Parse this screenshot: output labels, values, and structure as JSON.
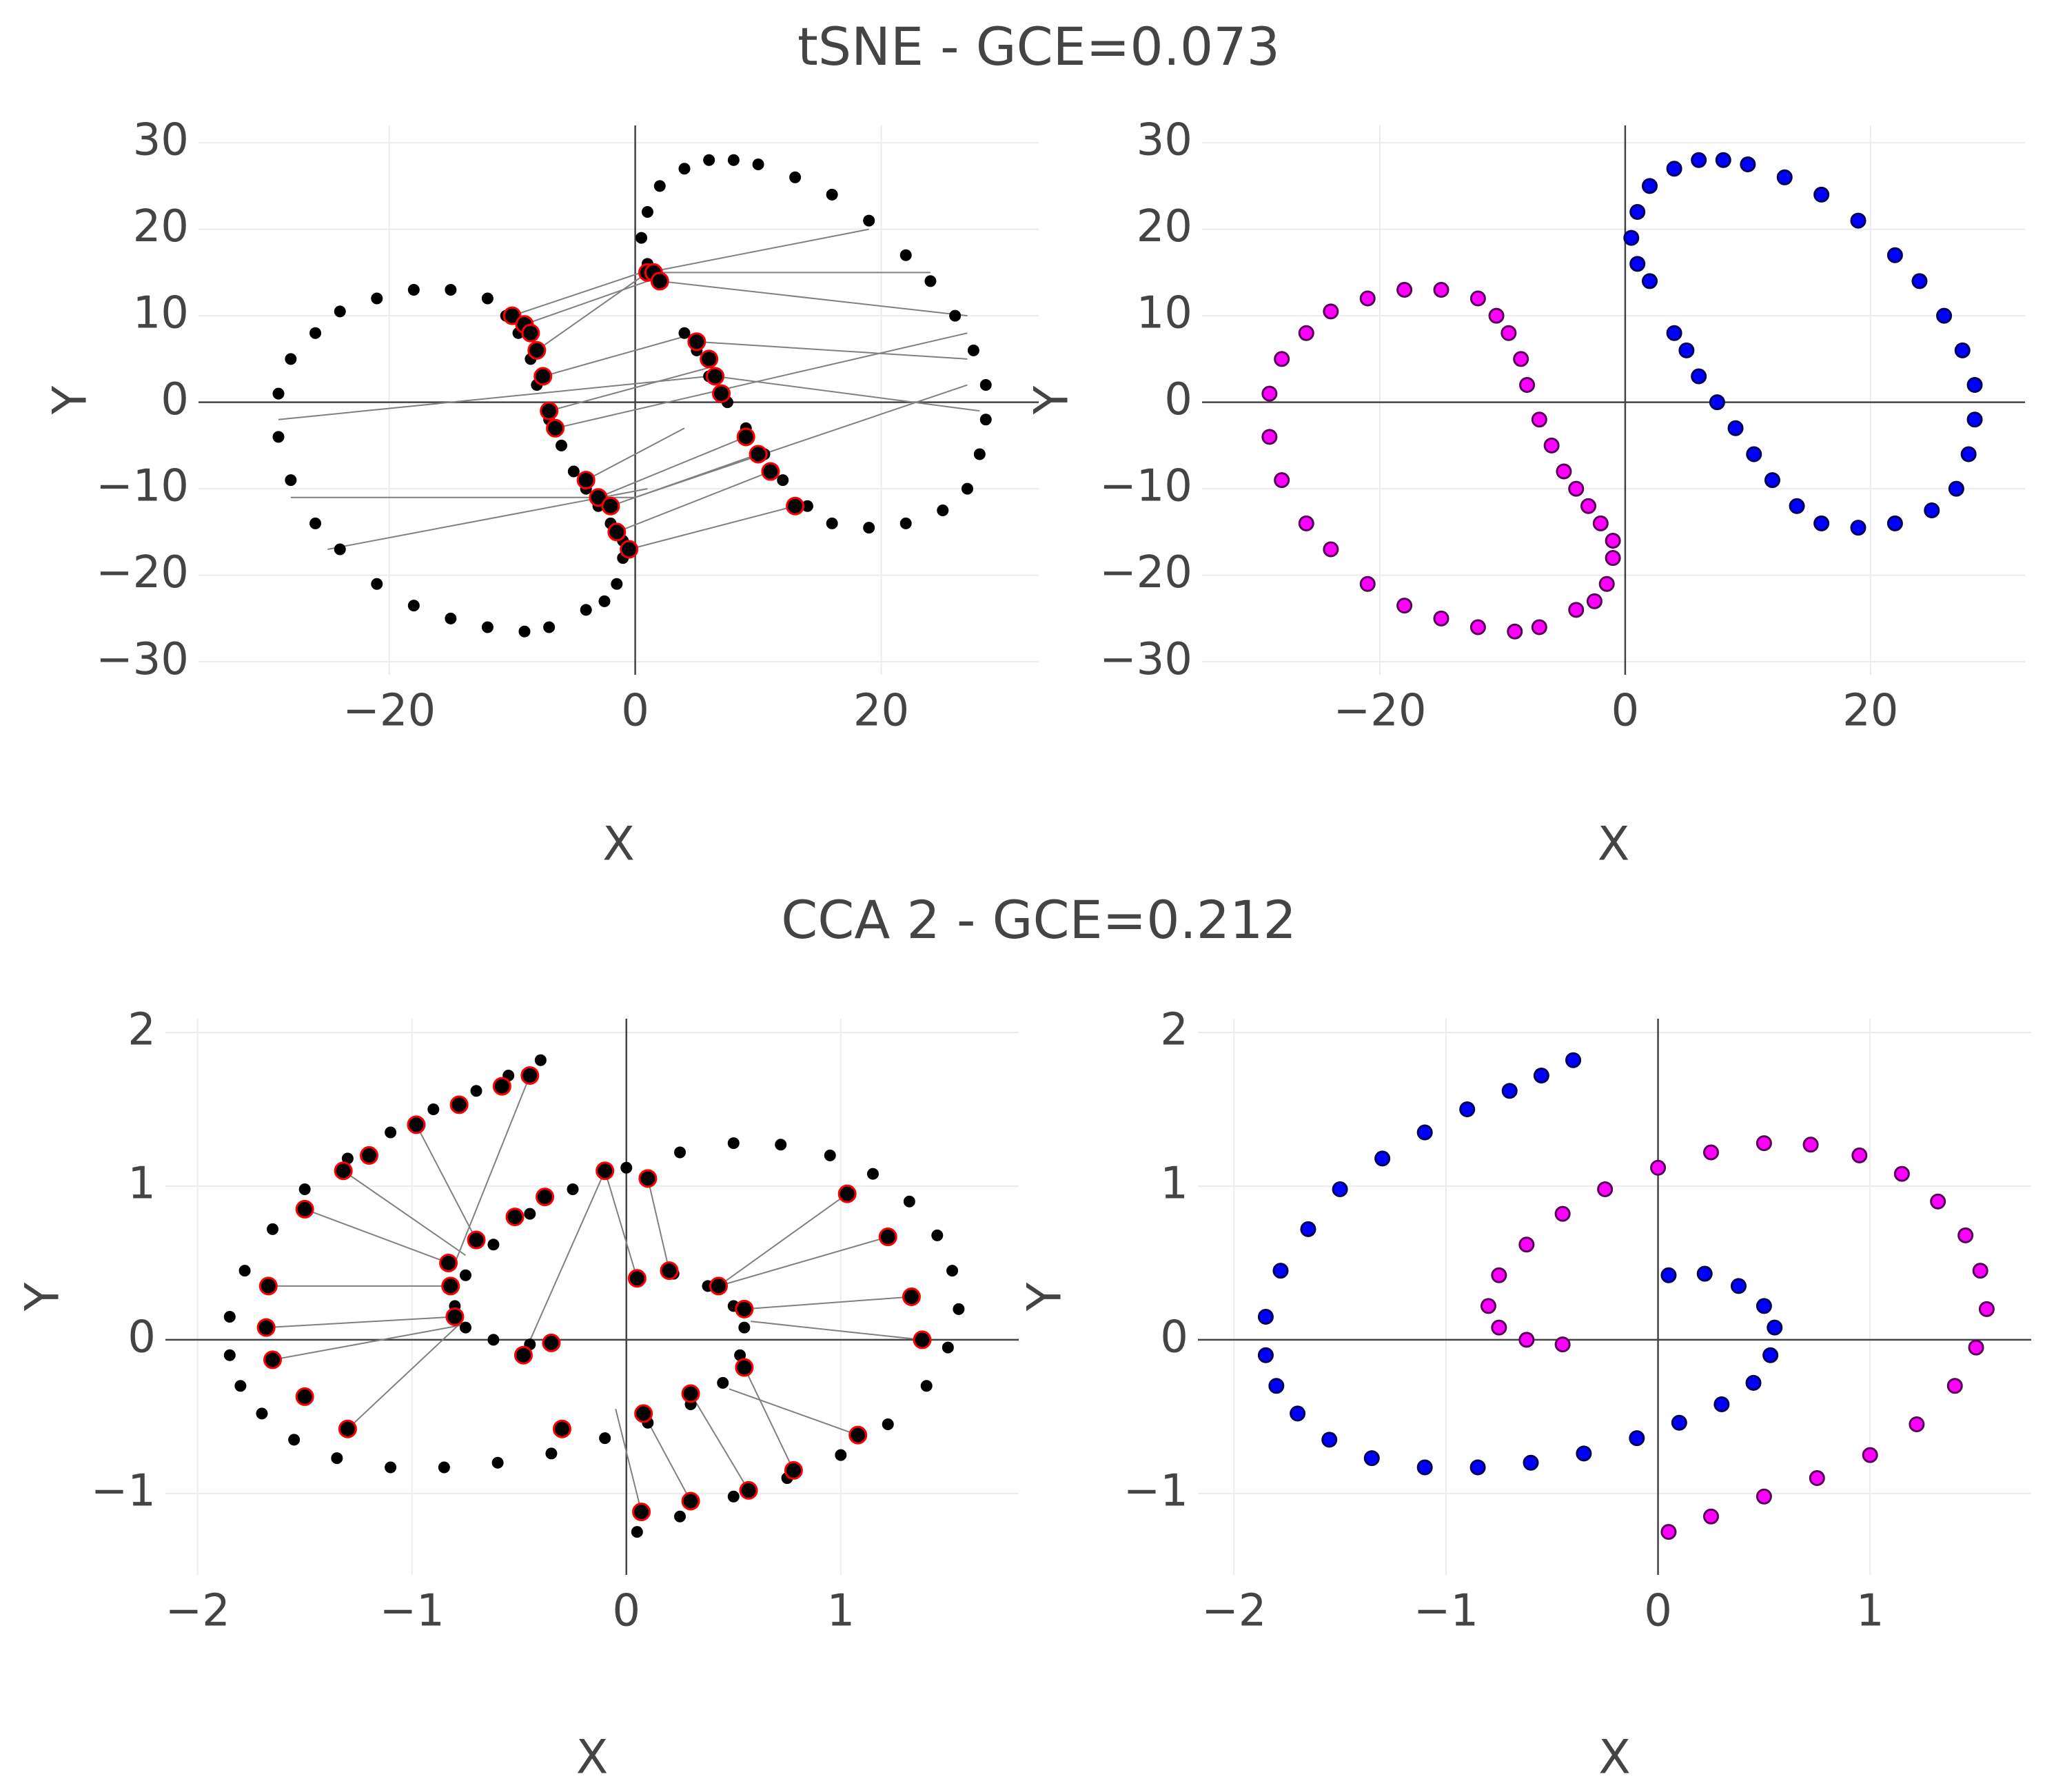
{
  "chart_data": [
    {
      "type": "scatter",
      "title": "tSNE - GCE=0.073",
      "xlabel": "X",
      "ylabel": "Y",
      "xlim": [
        -35.5,
        32.8
      ],
      "ylim": [
        -31.5,
        32
      ],
      "xticks": [
        {
          "value": -20,
          "label": "−20"
        },
        0,
        20
      ],
      "yticks": [
        {
          "value": -30,
          "label": "−30"
        },
        {
          "value": -20,
          "label": "−20"
        },
        {
          "value": -10,
          "label": "−10"
        },
        0,
        10,
        20,
        30
      ],
      "grid": true,
      "zeroline": true,
      "segments": {
        "color": "#808080",
        "x0": [
          -10,
          -9,
          -8,
          -7.5,
          -7,
          -6.5,
          1,
          1.5,
          2,
          5,
          -29,
          -28,
          -25,
          -4,
          -3,
          -2,
          -1.5,
          -0.5,
          0,
          6.5
        ],
        "y0": [
          10,
          9,
          6,
          3,
          -1,
          -3,
          15,
          15,
          14,
          7,
          -2,
          -11,
          -17,
          -9,
          -11,
          -12,
          -15,
          -17,
          -11,
          3
        ],
        "x1": [
          0.5,
          1,
          1,
          5,
          6,
          27,
          19,
          24,
          27,
          27,
          6,
          0,
          1,
          4,
          9,
          10,
          11,
          13,
          27,
          28
        ],
        "y1": [
          15,
          14,
          15,
          8,
          4,
          8,
          20,
          15,
          10,
          5,
          3,
          -11,
          -10,
          -3,
          -4,
          -6,
          -8,
          -12,
          2,
          -1
        ]
      },
      "series": [
        {
          "color": "#000000",
          "edge": "#000000",
          "size": 8,
          "x": [
            -1,
            -1.5,
            -2.5,
            -4,
            -7,
            -9,
            -12,
            -15,
            -18,
            -21,
            -24,
            -26,
            -28,
            -29,
            -29,
            -28,
            -26,
            -24,
            -21,
            -18,
            -15,
            -12,
            -10.5,
            -9.5,
            -8.5,
            -8,
            -7,
            -6,
            -5,
            -4,
            -3,
            -2,
            -1
          ],
          "values": [
            -18,
            -21,
            -23,
            -24,
            -26,
            -26.5,
            -26,
            -25,
            -23.5,
            -21,
            -17,
            -14,
            -9,
            -4,
            1,
            5,
            8,
            10.5,
            12,
            13,
            13,
            12,
            10,
            8,
            5,
            2,
            -2,
            -5,
            -8,
            -10,
            -12,
            -14,
            -16
          ]
        },
        {
          "color": "#000000",
          "edge": "#000000",
          "size": 8,
          "x": [
            2,
            1,
            0.5,
            1,
            2,
            4,
            6,
            8,
            10,
            13,
            16,
            19,
            22,
            24,
            26,
            27.5,
            28.5,
            28.5,
            28,
            27,
            25,
            22,
            19,
            16,
            14,
            12,
            10.5,
            9,
            7.5,
            6,
            5,
            4
          ],
          "values": [
            14,
            16,
            19,
            22,
            25,
            27,
            28,
            28,
            27.5,
            26,
            24,
            21,
            17,
            14,
            10,
            6,
            2,
            -2,
            -6,
            -10,
            -12.5,
            -14,
            -14.5,
            -14,
            -12,
            -9,
            -6,
            -3,
            0,
            3,
            6,
            8
          ]
        },
        {
          "color": "#000000",
          "edge": "#ff0000",
          "size": 12,
          "x": [
            -10,
            -9,
            -8.5,
            -8,
            -7.5,
            -7,
            -6.5,
            -4,
            -3,
            -2,
            -1.5,
            -0.5,
            1,
            1.5,
            2,
            5,
            6,
            6.5,
            7,
            9,
            10,
            11,
            13
          ],
          "values": [
            10,
            9,
            8,
            6,
            3,
            -1,
            -3,
            -9,
            -11,
            -12,
            -15,
            -17,
            15,
            15,
            14,
            7,
            5,
            3,
            1,
            -4,
            -6,
            -8,
            -12
          ]
        }
      ]
    },
    {
      "type": "scatter",
      "xlabel": "X",
      "ylabel": "Y",
      "xlim": [
        -34.5,
        32.6
      ],
      "ylim": [
        -31.5,
        32
      ],
      "xticks": [
        {
          "value": -20,
          "label": "−20"
        },
        0,
        20
      ],
      "yticks": [
        {
          "value": -30,
          "label": "−30"
        },
        {
          "value": -20,
          "label": "−20"
        },
        {
          "value": -10,
          "label": "−10"
        },
        0,
        10,
        20,
        30
      ],
      "grid": true,
      "zeroline": true,
      "series": [
        {
          "color": "#ff00ff",
          "edge": "#550055",
          "size": 10,
          "x": [
            -1,
            -1.5,
            -2.5,
            -4,
            -7,
            -9,
            -12,
            -15,
            -18,
            -21,
            -24,
            -26,
            -28,
            -29,
            -29,
            -28,
            -26,
            -24,
            -21,
            -18,
            -15,
            -12,
            -10.5,
            -9.5,
            -8.5,
            -8,
            -7,
            -6,
            -5,
            -4,
            -3,
            -2,
            -1
          ],
          "values": [
            -18,
            -21,
            -23,
            -24,
            -26,
            -26.5,
            -26,
            -25,
            -23.5,
            -21,
            -17,
            -14,
            -9,
            -4,
            1,
            5,
            8,
            10.5,
            12,
            13,
            13,
            12,
            10,
            8,
            5,
            2,
            -2,
            -5,
            -8,
            -10,
            -12,
            -14,
            -16
          ]
        },
        {
          "color": "#0000ff",
          "edge": "#000055",
          "size": 10,
          "x": [
            2,
            1,
            0.5,
            1,
            2,
            4,
            6,
            8,
            10,
            13,
            16,
            19,
            22,
            24,
            26,
            27.5,
            28.5,
            28.5,
            28,
            27,
            25,
            22,
            19,
            16,
            14,
            12,
            10.5,
            9,
            7.5,
            6,
            5,
            4
          ],
          "values": [
            14,
            16,
            19,
            22,
            25,
            27,
            28,
            28,
            27.5,
            26,
            24,
            21,
            17,
            14,
            10,
            6,
            2,
            -2,
            -6,
            -10,
            -12.5,
            -14,
            -14.5,
            -14,
            -12,
            -9,
            -6,
            -3,
            0,
            3,
            6,
            8
          ]
        }
      ]
    },
    {
      "type": "scatter",
      "title": "CCA 2 - GCE=0.212",
      "xlabel": "X",
      "ylabel": "Y",
      "xlim": [
        -2.15,
        1.83
      ],
      "ylim": [
        -1.53,
        2.09
      ],
      "xticks": [
        {
          "value": -2,
          "label": "−2"
        },
        {
          "value": -1,
          "label": "−1"
        },
        0,
        1
      ],
      "yticks": [
        {
          "value": -1,
          "label": "−1"
        },
        0,
        1,
        2
      ],
      "grid": true,
      "zeroline": true,
      "segments": {
        "color": "#808080",
        "x0": [
          -0.45,
          -0.98,
          -1.32,
          -1.5,
          -1.67,
          -1.68,
          -1.65,
          -1.3,
          -0.1,
          0.1,
          0.43,
          0.55,
          0.07,
          0.3,
          0.57,
          0.78,
          1.08,
          1.38,
          1.22,
          -0.48
        ],
        "y0": [
          1.72,
          1.4,
          1.1,
          0.85,
          0.35,
          0.08,
          -0.13,
          -0.58,
          1.1,
          1.05,
          0.35,
          0.2,
          -1.12,
          -1.05,
          -0.98,
          -0.85,
          -0.62,
          0.0,
          0.67,
          -0.1
        ],
        "x1": [
          -0.8,
          -0.7,
          -0.75,
          -0.83,
          -0.82,
          -0.8,
          -0.75,
          -0.78,
          0.05,
          0.2,
          1.03,
          1.33,
          -0.05,
          0.08,
          0.3,
          0.55,
          0.48,
          0.58,
          0.43,
          -0.1
        ],
        "y1": [
          0.5,
          0.65,
          0.55,
          0.5,
          0.35,
          0.15,
          0.1,
          0.1,
          0.4,
          0.45,
          0.95,
          0.28,
          -0.45,
          -0.48,
          -0.35,
          -0.18,
          -0.32,
          0.12,
          0.35,
          1.1
        ]
      },
      "series": [
        {
          "color": "#000000",
          "edge": "#000000",
          "size": 8,
          "x": [
            -0.4,
            -0.55,
            -0.7,
            -0.9,
            -1.1,
            -1.3,
            -1.5,
            -1.65,
            -1.78,
            -1.85,
            -1.85,
            -1.8,
            -1.7,
            -1.55,
            -1.35,
            -1.1,
            -0.85,
            -0.6,
            -0.35,
            -0.1,
            0.1,
            0.3,
            0.45,
            0.53,
            0.55,
            0.5,
            0.38,
            0.22,
            0.05
          ],
          "values": [
            1.82,
            1.72,
            1.62,
            1.5,
            1.35,
            1.18,
            0.98,
            0.72,
            0.45,
            0.15,
            -0.1,
            -0.3,
            -0.48,
            -0.65,
            -0.77,
            -0.83,
            -0.83,
            -0.8,
            -0.74,
            -0.64,
            -0.54,
            -0.42,
            -0.28,
            -0.1,
            0.08,
            0.22,
            0.35,
            0.43,
            0.42
          ]
        },
        {
          "color": "#000000",
          "edge": "#000000",
          "size": 8,
          "x": [
            0.05,
            0.25,
            0.5,
            0.75,
            1.0,
            1.22,
            1.4,
            1.5,
            1.55,
            1.52,
            1.45,
            1.32,
            1.15,
            0.95,
            0.72,
            0.5,
            0.25,
            0,
            -0.25,
            -0.45,
            -0.62,
            -0.75,
            -0.8,
            -0.75,
            -0.62,
            -0.45
          ],
          "values": [
            -1.25,
            -1.15,
            -1.02,
            -0.9,
            -0.75,
            -0.55,
            -0.3,
            -0.05,
            0.2,
            0.45,
            0.68,
            0.9,
            1.08,
            1.2,
            1.27,
            1.28,
            1.22,
            1.12,
            0.98,
            0.82,
            0.62,
            0.42,
            0.22,
            0.08,
            0.0,
            -0.03
          ]
        },
        {
          "color": "#000000",
          "edge": "#ff0000",
          "size": 12,
          "x": [
            -0.45,
            -0.58,
            -0.78,
            -0.98,
            -1.2,
            -1.32,
            -1.5,
            -1.67,
            -1.68,
            -1.65,
            -1.5,
            -1.3,
            -0.83,
            -0.82,
            -0.8,
            -0.7,
            -0.52,
            -0.38,
            -0.1,
            0.1,
            0.05,
            0.2,
            0.43,
            0.55,
            -0.48,
            -0.35,
            0.55,
            0.3,
            0.08,
            -0.3,
            0.07,
            0.3,
            0.57,
            0.78,
            1.08,
            1.38,
            1.33,
            1.22,
            1.03
          ],
          "values": [
            1.72,
            1.65,
            1.53,
            1.4,
            1.2,
            1.1,
            0.85,
            0.35,
            0.08,
            -0.13,
            -0.37,
            -0.58,
            0.5,
            0.35,
            0.15,
            0.65,
            0.8,
            0.93,
            1.1,
            1.05,
            0.4,
            0.45,
            0.35,
            0.2,
            -0.1,
            -0.02,
            -0.18,
            -0.35,
            -0.48,
            -0.58,
            -1.12,
            -1.05,
            -0.98,
            -0.85,
            -0.62,
            0.0,
            0.28,
            0.67,
            0.95
          ]
        }
      ]
    },
    {
      "type": "scatter",
      "xlabel": "X",
      "ylabel": "Y",
      "xlim": [
        -2.17,
        1.76
      ],
      "ylim": [
        -1.53,
        2.09
      ],
      "xticks": [
        {
          "value": -2,
          "label": "−2"
        },
        {
          "value": -1,
          "label": "−1"
        },
        0,
        1
      ],
      "yticks": [
        {
          "value": -1,
          "label": "−1"
        },
        0,
        1,
        2
      ],
      "grid": true,
      "zeroline": true,
      "series": [
        {
          "color": "#0000ff",
          "edge": "#000055",
          "size": 10,
          "x": [
            -0.4,
            -0.55,
            -0.7,
            -0.9,
            -1.1,
            -1.3,
            -1.5,
            -1.65,
            -1.78,
            -1.85,
            -1.85,
            -1.8,
            -1.7,
            -1.55,
            -1.35,
            -1.1,
            -0.85,
            -0.6,
            -0.35,
            -0.1,
            0.1,
            0.3,
            0.45,
            0.53,
            0.55,
            0.5,
            0.38,
            0.22,
            0.05
          ],
          "values": [
            1.82,
            1.72,
            1.62,
            1.5,
            1.35,
            1.18,
            0.98,
            0.72,
            0.45,
            0.15,
            -0.1,
            -0.3,
            -0.48,
            -0.65,
            -0.77,
            -0.83,
            -0.83,
            -0.8,
            -0.74,
            -0.64,
            -0.54,
            -0.42,
            -0.28,
            -0.1,
            0.08,
            0.22,
            0.35,
            0.43,
            0.42
          ]
        },
        {
          "color": "#ff00ff",
          "edge": "#550055",
          "size": 10,
          "x": [
            0.05,
            0.25,
            0.5,
            0.75,
            1.0,
            1.22,
            1.4,
            1.5,
            1.55,
            1.52,
            1.45,
            1.32,
            1.15,
            0.95,
            0.72,
            0.5,
            0.25,
            0,
            -0.25,
            -0.45,
            -0.62,
            -0.75,
            -0.8,
            -0.75,
            -0.62,
            -0.45
          ],
          "values": [
            -1.25,
            -1.15,
            -1.02,
            -0.9,
            -0.75,
            -0.55,
            -0.3,
            -0.05,
            0.2,
            0.45,
            0.68,
            0.9,
            1.08,
            1.2,
            1.27,
            1.28,
            1.22,
            1.12,
            0.98,
            0.82,
            0.62,
            0.42,
            0.22,
            0.08,
            0.0,
            -0.03
          ]
        }
      ]
    }
  ]
}
